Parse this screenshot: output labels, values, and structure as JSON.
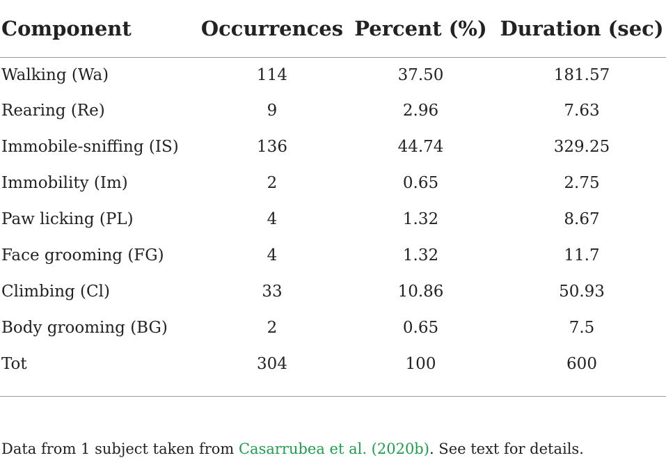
{
  "table": {
    "headers": [
      "Component",
      "Occurrences",
      "Percent (%)",
      "Duration (sec)"
    ],
    "rows": [
      [
        "Walking (Wa)",
        "114",
        "37.50",
        "181.57"
      ],
      [
        "Rearing (Re)",
        "9",
        "2.96",
        "7.63"
      ],
      [
        "Immobile-sniffing (IS)",
        "136",
        "44.74",
        "329.25"
      ],
      [
        "Immobility (Im)",
        "2",
        "0.65",
        "2.75"
      ],
      [
        "Paw licking (PL)",
        "4",
        "1.32",
        "8.67"
      ],
      [
        "Face grooming (FG)",
        "4",
        "1.32",
        "11.7"
      ],
      [
        "Climbing (Cl)",
        "33",
        "10.86",
        "50.93"
      ],
      [
        "Body grooming (BG)",
        "2",
        "0.65",
        "7.5"
      ],
      [
        "Tot",
        "304",
        "100",
        "600"
      ]
    ]
  },
  "footnote": {
    "prefix": "Data from 1 subject taken from ",
    "link_text": "Casarrubea et al.  (2020b)",
    "suffix": ". See text for details."
  },
  "colors": {
    "text": "#222222",
    "link": "#1e9d4a",
    "rule": "#9a9a9a"
  }
}
